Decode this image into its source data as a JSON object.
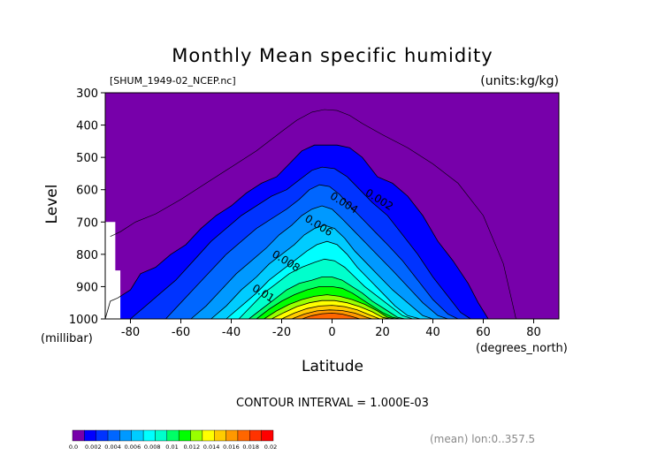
{
  "chart_data": {
    "type": "contour",
    "title": "Monthly Mean specific humidity",
    "file_label": "[SHUM_1949-02_NCEP.nc]",
    "units_label": "(units:kg/kg)",
    "xlabel": "Latitude",
    "x_units": "(degrees_north)",
    "ylabel": "Level",
    "y_units": "(millibar)",
    "xlim": [
      -90,
      90
    ],
    "ylim": [
      300,
      1000
    ],
    "y_reversed": true,
    "x_ticks": [
      -80,
      -60,
      -40,
      -20,
      0,
      20,
      40,
      60,
      80
    ],
    "y_ticks": [
      300,
      400,
      500,
      600,
      700,
      800,
      900,
      1000
    ],
    "contour_interval_text": "CONTOUR INTERVAL = 1.000E-03",
    "footer_note": "(mean) lon:0..357.5",
    "background_color": "#7700aa",
    "contour_labels": [
      {
        "text": "0.002",
        "lat": 18,
        "level": 640
      },
      {
        "text": "0.004",
        "lat": 4,
        "level": 650
      },
      {
        "text": "0.006",
        "lat": -6,
        "level": 720
      },
      {
        "text": "0.008",
        "lat": -19,
        "level": 830
      },
      {
        "text": "0.01",
        "lat": -28,
        "level": 930
      }
    ],
    "thin_contour_0_001": {
      "lat": [
        -88,
        -84,
        -78,
        -70,
        -60,
        -50,
        -40,
        -30,
        -20,
        -14,
        -8,
        -3,
        2,
        7,
        12,
        20,
        30,
        40,
        50,
        60,
        68,
        73
      ],
      "level": [
        745,
        730,
        700,
        675,
        630,
        580,
        530,
        480,
        420,
        385,
        360,
        352,
        355,
        370,
        395,
        430,
        470,
        520,
        580,
        680,
        830,
        1000
      ]
    },
    "filled_contours": [
      {
        "min": 0.002,
        "color": "#0000ff",
        "lat": [
          -90,
          -88,
          -85,
          -80,
          -76,
          -70,
          -64,
          -58,
          -52,
          -46,
          -40,
          -34,
          -28,
          -22,
          -17,
          -12,
          -7,
          -3,
          2,
          7,
          12,
          18,
          24,
          30,
          36,
          42,
          48,
          54,
          58,
          62
        ],
        "level": [
          1000,
          945,
          935,
          910,
          860,
          840,
          800,
          770,
          720,
          680,
          650,
          610,
          580,
          560,
          520,
          480,
          462,
          462,
          462,
          470,
          500,
          560,
          580,
          620,
          680,
          760,
          820,
          890,
          950,
          1000
        ]
      },
      {
        "min": 0.003,
        "color": "#0033ff",
        "lat": [
          -80,
          -74,
          -68,
          -62,
          -55,
          -48,
          -42,
          -36,
          -30,
          -24,
          -18,
          -13,
          -8,
          -4,
          1,
          6,
          11,
          16,
          22,
          28,
          34,
          40,
          46,
          51,
          55
        ],
        "level": [
          1000,
          960,
          920,
          880,
          820,
          760,
          720,
          680,
          650,
          620,
          600,
          570,
          540,
          530,
          535,
          560,
          600,
          640,
          680,
          740,
          800,
          870,
          930,
          980,
          1000
        ]
      },
      {
        "min": 0.004,
        "color": "#0066ff",
        "lat": [
          -66,
          -60,
          -54,
          -48,
          -42,
          -36,
          -30,
          -24,
          -18,
          -13,
          -9,
          -5,
          -1,
          3,
          7,
          12,
          17,
          22,
          28,
          34,
          40,
          46,
          50
        ],
        "level": [
          1000,
          950,
          900,
          850,
          800,
          760,
          720,
          690,
          660,
          630,
          600,
          585,
          590,
          615,
          650,
          690,
          730,
          770,
          820,
          880,
          940,
          985,
          1000
        ]
      },
      {
        "min": 0.005,
        "color": "#0099ff",
        "lat": [
          -56,
          -50,
          -44,
          -38,
          -32,
          -26,
          -21,
          -16,
          -12,
          -8,
          -4,
          0,
          4,
          9,
          14,
          19,
          24,
          30,
          36,
          42,
          46
        ],
        "level": [
          1000,
          960,
          910,
          860,
          820,
          780,
          740,
          710,
          680,
          660,
          650,
          660,
          690,
          730,
          770,
          810,
          850,
          900,
          950,
          990,
          1000
        ]
      },
      {
        "min": 0.006,
        "color": "#00ccff",
        "lat": [
          -48,
          -42,
          -36,
          -30,
          -25,
          -20,
          -15,
          -11,
          -7,
          -3,
          1,
          5,
          9,
          14,
          19,
          24,
          30,
          36,
          40
        ],
        "level": [
          1000,
          960,
          910,
          870,
          830,
          800,
          770,
          740,
          720,
          710,
          720,
          750,
          790,
          830,
          870,
          910,
          950,
          990,
          1000
        ]
      },
      {
        "min": 0.007,
        "color": "#00ffff",
        "lat": [
          -42,
          -36,
          -30,
          -25,
          -20,
          -15,
          -10,
          -6,
          -2,
          2,
          6,
          10,
          15,
          20,
          25,
          30,
          35
        ],
        "level": [
          1000,
          960,
          920,
          880,
          850,
          820,
          790,
          770,
          760,
          770,
          800,
          840,
          880,
          920,
          960,
          990,
          1000
        ]
      },
      {
        "min": 0.008,
        "color": "#00ffcc",
        "lat": [
          -37,
          -32,
          -27,
          -22,
          -17,
          -12,
          -7,
          -3,
          1,
          5,
          9,
          13,
          18,
          23,
          28,
          32
        ],
        "level": [
          1000,
          960,
          920,
          890,
          860,
          840,
          825,
          815,
          820,
          840,
          870,
          900,
          930,
          960,
          990,
          1000
        ]
      },
      {
        "min": 0.009,
        "color": "#00ff66",
        "lat": [
          -33,
          -28,
          -23,
          -18,
          -13,
          -8,
          -4,
          0,
          4,
          8,
          12,
          16,
          21,
          26,
          29
        ],
        "level": [
          1000,
          970,
          940,
          910,
          890,
          880,
          870,
          870,
          880,
          900,
          920,
          945,
          970,
          995,
          1000
        ]
      },
      {
        "min": 0.01,
        "color": "#00ff00",
        "lat": [
          -30,
          -25,
          -20,
          -15,
          -10,
          -5,
          0,
          4,
          8,
          12,
          16,
          20,
          24,
          27
        ],
        "level": [
          1000,
          970,
          945,
          925,
          910,
          900,
          900,
          905,
          920,
          940,
          960,
          980,
          995,
          1000
        ]
      },
      {
        "min": 0.011,
        "color": "#99ff00",
        "lat": [
          -27,
          -22,
          -17,
          -12,
          -7,
          -2,
          3,
          8,
          13,
          18,
          22,
          25
        ],
        "level": [
          1000,
          975,
          955,
          940,
          930,
          925,
          930,
          940,
          955,
          975,
          995,
          1000
        ]
      },
      {
        "min": 0.012,
        "color": "#ffff00",
        "lat": [
          -24,
          -19,
          -14,
          -9,
          -4,
          1,
          6,
          11,
          16,
          20,
          23
        ],
        "level": [
          1000,
          980,
          962,
          950,
          943,
          943,
          950,
          962,
          978,
          995,
          1000
        ]
      },
      {
        "min": 0.013,
        "color": "#ffcc00",
        "lat": [
          -20,
          -15,
          -10,
          -5,
          0,
          5,
          10,
          15,
          19
        ],
        "level": [
          1000,
          982,
          968,
          960,
          958,
          962,
          972,
          988,
          1000
        ]
      },
      {
        "min": 0.014,
        "color": "#ff9900",
        "lat": [
          -16,
          -11,
          -6,
          -1,
          4,
          9,
          14,
          16
        ],
        "level": [
          1000,
          985,
          975,
          972,
          974,
          982,
          996,
          1000
        ]
      },
      {
        "min": 0.015,
        "color": "#ff6600",
        "lat": [
          -12,
          -8,
          -4,
          0,
          4,
          8,
          11
        ],
        "level": [
          1000,
          990,
          984,
          982,
          985,
          993,
          1000
        ]
      }
    ],
    "missing_data_mask": {
      "color": "#ffffff",
      "lat": [
        -90,
        -86,
        -86,
        -84,
        -84,
        -90
      ],
      "level": [
        700,
        700,
        850,
        850,
        1000,
        1000
      ]
    },
    "colorbar": {
      "colors": [
        "#7700aa",
        "#0000ff",
        "#0033ff",
        "#0066ff",
        "#0099ff",
        "#00ccff",
        "#00ffff",
        "#00ffcc",
        "#00ff66",
        "#00ff00",
        "#99ff00",
        "#ffff00",
        "#ffcc00",
        "#ff9900",
        "#ff6600",
        "#ff3300",
        "#ff0000"
      ],
      "labels": [
        "0.0",
        "0.002",
        "0.004",
        "0.006",
        "0.008",
        "0.01",
        "0.012",
        "0.014",
        "0.016",
        "0.018",
        "0.02"
      ]
    }
  }
}
